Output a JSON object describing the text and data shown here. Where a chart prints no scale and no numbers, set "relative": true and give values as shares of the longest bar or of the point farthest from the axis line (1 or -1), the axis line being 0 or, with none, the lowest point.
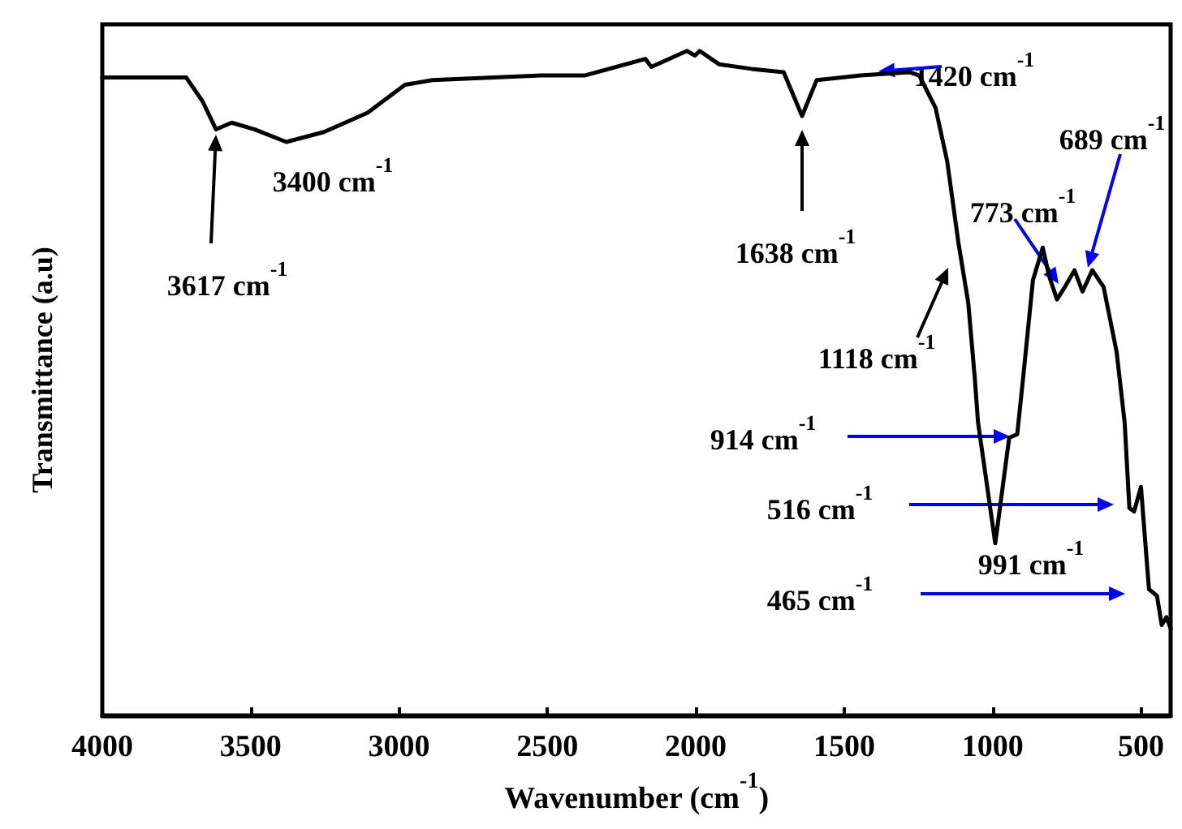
{
  "chart_data": {
    "type": "line",
    "relative": true,
    "xlabel": "Wavenumber (cm$^{-1}$)",
    "ylabel": "Transmittance (a.u)",
    "xlim": [
      4000,
      400
    ],
    "xticks": [
      4000,
      3500,
      3000,
      2500,
      2000,
      1500,
      1000,
      500
    ],
    "tick_labels": "x",
    "grid": false,
    "marker": "none",
    "line_style": "solid",
    "x": [
      4000,
      3717,
      3662,
      3617,
      3564,
      3488,
      3380,
      3253,
      3106,
      2980,
      2888,
      2522,
      2375,
      2170,
      2150,
      2030,
      2003,
      1987,
      1922,
      1813,
      1704,
      1642,
      1593,
      1445,
      1280,
      1247,
      1192,
      1153,
      1115,
      1082,
      1060,
      1049,
      991,
      944,
      917,
      897,
      864,
      831,
      810,
      783,
      756,
      724,
      697,
      664,
      626,
      582,
      555,
      539,
      523,
      500,
      473,
      446,
      430,
      414,
      400
    ],
    "series": [
      {
        "color": "#000000",
        "values": [
          0.96,
          0.96,
          0.924,
          0.882,
          0.892,
          0.882,
          0.863,
          0.878,
          0.907,
          0.949,
          0.956,
          0.963,
          0.963,
          0.988,
          0.976,
          1.0,
          0.993,
          1.0,
          0.98,
          0.973,
          0.968,
          0.902,
          0.956,
          0.963,
          0.968,
          0.963,
          0.914,
          0.834,
          0.711,
          0.621,
          0.508,
          0.441,
          0.259,
          0.418,
          0.423,
          0.508,
          0.655,
          0.704,
          0.662,
          0.626,
          0.645,
          0.67,
          0.638,
          0.67,
          0.645,
          0.547,
          0.441,
          0.312,
          0.307,
          0.344,
          0.19,
          0.18,
          0.136,
          0.148,
          0.131
        ]
      }
    ],
    "annotations": [
      "3617 cm$^{-1}$",
      "3400 cm$^{-1}$",
      "1638 cm$^{-1}$",
      "1420 cm$^{-1}$",
      "689 cm$^{-1}$",
      "773 cm$^{-1}$",
      "1118 cm$^{-1}$",
      "914 cm$^{-1}$",
      "516 cm$^{-1}$",
      "991 cm$^{-1}$",
      "465 cm$^{-1}$"
    ]
  }
}
